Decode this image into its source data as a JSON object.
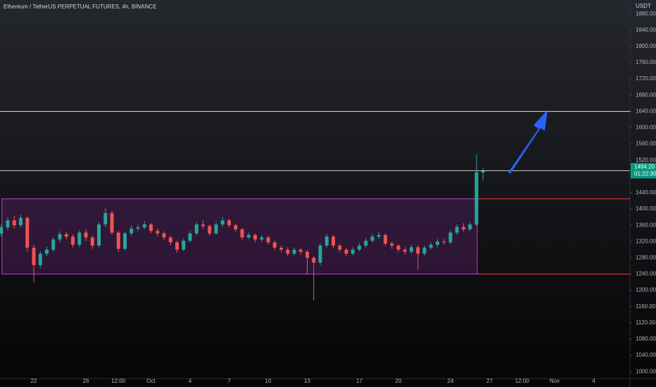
{
  "chart_data": {
    "type": "candlestick",
    "title": "Ethereum / TetherUS PERPETUAL FUTURES, 4h, BINANCE",
    "currency": "USDT",
    "categories": [
      null,
      null,
      null,
      null,
      null,
      "22",
      null,
      null,
      null,
      null,
      null,
      null,
      null,
      "26",
      null,
      null,
      null,
      null,
      "12:00",
      null,
      null,
      null,
      null,
      "Oct",
      null,
      null,
      null,
      null,
      null,
      "4",
      null,
      null,
      null,
      null,
      null,
      "7",
      null,
      null,
      null,
      null,
      null,
      "10",
      null,
      null,
      null,
      null,
      null,
      "13",
      null,
      null,
      null,
      null,
      null,
      null,
      null,
      "17",
      null,
      null,
      null,
      null,
      null,
      "20",
      null,
      null,
      null,
      null,
      null,
      null,
      null,
      "24",
      null,
      null,
      null,
      null,
      null,
      "27",
      null,
      null,
      null,
      null,
      "12:00",
      null,
      null,
      null,
      null,
      "Nov",
      null,
      null,
      null,
      null,
      null,
      "4",
      null,
      null,
      null,
      null
    ],
    "open": [
      1340,
      1355,
      1372,
      1360,
      1378,
      1305,
      1262,
      1290,
      1300,
      1325,
      1338,
      1332,
      1312,
      1342,
      1330,
      1310,
      1362,
      1390,
      1342,
      1302,
      1340,
      1352,
      1355,
      1362,
      1346,
      1340,
      1330,
      1318,
      1300,
      1322,
      1340,
      1362,
      1358,
      1340,
      1362,
      1372,
      1360,
      1350,
      1330,
      1336,
      1325,
      1330,
      1318,
      1305,
      1300,
      1290,
      1300,
      1295,
      1280,
      1268,
      1310,
      1332,
      1310,
      1300,
      1290,
      1300,
      1310,
      1322,
      1332,
      1336,
      1315,
      1310,
      1300,
      1295,
      1306,
      1290,
      1305,
      1312,
      1320,
      1318,
      1342,
      1356,
      1350,
      1362,
      1490,
      null,
      null,
      null,
      null,
      null,
      null,
      null,
      null,
      null,
      null,
      null,
      null,
      null,
      null,
      null,
      null,
      null,
      null,
      null,
      null,
      null
    ],
    "high": [
      1362,
      1380,
      1384,
      1386,
      1382,
      1312,
      1296,
      1308,
      1330,
      1345,
      1344,
      1338,
      1348,
      1350,
      1334,
      1368,
      1402,
      1395,
      1346,
      1345,
      1360,
      1362,
      1370,
      1366,
      1352,
      1345,
      1334,
      1322,
      1328,
      1346,
      1368,
      1372,
      1362,
      1368,
      1380,
      1376,
      1364,
      1354,
      1342,
      1340,
      1336,
      1334,
      1322,
      1310,
      1306,
      1306,
      1304,
      1300,
      1285,
      1316,
      1338,
      1336,
      1314,
      1304,
      1306,
      1316,
      1328,
      1338,
      1344,
      1340,
      1320,
      1314,
      1306,
      1312,
      1310,
      1310,
      1318,
      1326,
      1326,
      1348,
      1362,
      1365,
      1368,
      1535,
      1500,
      null,
      null,
      null,
      null,
      null,
      null,
      null,
      null,
      null,
      null,
      null,
      null,
      null,
      null,
      null,
      null,
      null,
      null,
      null,
      null,
      null
    ],
    "low": [
      1332,
      1348,
      1352,
      1355,
      1295,
      1220,
      1255,
      1284,
      1295,
      1318,
      1325,
      1305,
      1306,
      1322,
      1302,
      1305,
      1355,
      1336,
      1295,
      1298,
      1334,
      1345,
      1350,
      1340,
      1332,
      1324,
      1310,
      1292,
      1296,
      1318,
      1335,
      1350,
      1334,
      1336,
      1356,
      1354,
      1344,
      1324,
      1326,
      1318,
      1320,
      1312,
      1298,
      1294,
      1284,
      1286,
      1288,
      1240,
      1175,
      1262,
      1305,
      1304,
      1294,
      1284,
      1286,
      1296,
      1305,
      1318,
      1326,
      1310,
      1302,
      1294,
      1288,
      1290,
      1250,
      1285,
      1300,
      1306,
      1312,
      1314,
      1336,
      1344,
      1346,
      1358,
      1470,
      null,
      null,
      null,
      null,
      null,
      null,
      null,
      null,
      null,
      null,
      null,
      null,
      null,
      null,
      null,
      null,
      null,
      null,
      null,
      null,
      null
    ],
    "close": [
      1355,
      1372,
      1360,
      1378,
      1305,
      1262,
      1290,
      1300,
      1325,
      1338,
      1332,
      1312,
      1342,
      1330,
      1310,
      1362,
      1390,
      1342,
      1302,
      1340,
      1352,
      1355,
      1362,
      1346,
      1340,
      1330,
      1318,
      1300,
      1322,
      1340,
      1362,
      1358,
      1340,
      1362,
      1372,
      1360,
      1350,
      1330,
      1336,
      1325,
      1330,
      1318,
      1305,
      1300,
      1290,
      1300,
      1295,
      1280,
      1268,
      1310,
      1332,
      1310,
      1300,
      1290,
      1300,
      1310,
      1322,
      1332,
      1336,
      1315,
      1310,
      1300,
      1295,
      1306,
      1290,
      1305,
      1312,
      1320,
      1318,
      1342,
      1356,
      1350,
      1362,
      1490,
      1494.2,
      null,
      null,
      null,
      null,
      null,
      null,
      null,
      null,
      null,
      null,
      null,
      null,
      null,
      null,
      null,
      null,
      null,
      null,
      null,
      null,
      null
    ],
    "up_color": "#26a69a",
    "down_color": "#ef5350",
    "ylim": [
      983,
      1914
    ],
    "yticks": [
      {
        "value": 1000,
        "label": "1000.00"
      },
      {
        "value": 1040,
        "label": "1040.00"
      },
      {
        "value": 1080,
        "label": "1080.00"
      },
      {
        "value": 1120,
        "label": "1120.00"
      },
      {
        "value": 1160,
        "label": "1160.00"
      },
      {
        "value": 1200,
        "label": "1200.00"
      },
      {
        "value": 1240,
        "label": "1240.00"
      },
      {
        "value": 1280,
        "label": "1280.00"
      },
      {
        "value": 1320,
        "label": "1320.00"
      },
      {
        "value": 1360,
        "label": "1360.00"
      },
      {
        "value": 1400,
        "label": "1400.00"
      },
      {
        "value": 1440,
        "label": "1440.00"
      },
      {
        "value": 1480,
        "label": "1480.00"
      },
      {
        "value": 1520,
        "label": "1520.00"
      },
      {
        "value": 1560,
        "label": "1560.00"
      },
      {
        "value": 1600,
        "label": "1600.00"
      },
      {
        "value": 1640,
        "label": "1640.00"
      },
      {
        "value": 1680,
        "label": "1680.00"
      },
      {
        "value": 1720,
        "label": "1720.00"
      },
      {
        "value": 1760,
        "label": "1760.00"
      },
      {
        "value": 1800,
        "label": "1800.00"
      },
      {
        "value": 1840,
        "label": "1840.00"
      },
      {
        "value": 1880,
        "label": "1880.00"
      }
    ],
    "grid": false,
    "levels": [
      {
        "value": 1640,
        "color": "#e0e3eb"
      }
    ],
    "range_box": {
      "top": 1425,
      "bottom": 1240,
      "fill": "rgba(156,39,176,0.22)",
      "stroke": "#c040d0",
      "line_color": "#f23645"
    },
    "last_price": {
      "value": 1494.2,
      "label": "1494.20",
      "countdown": "01:22:30",
      "color": "#089981"
    }
  }
}
